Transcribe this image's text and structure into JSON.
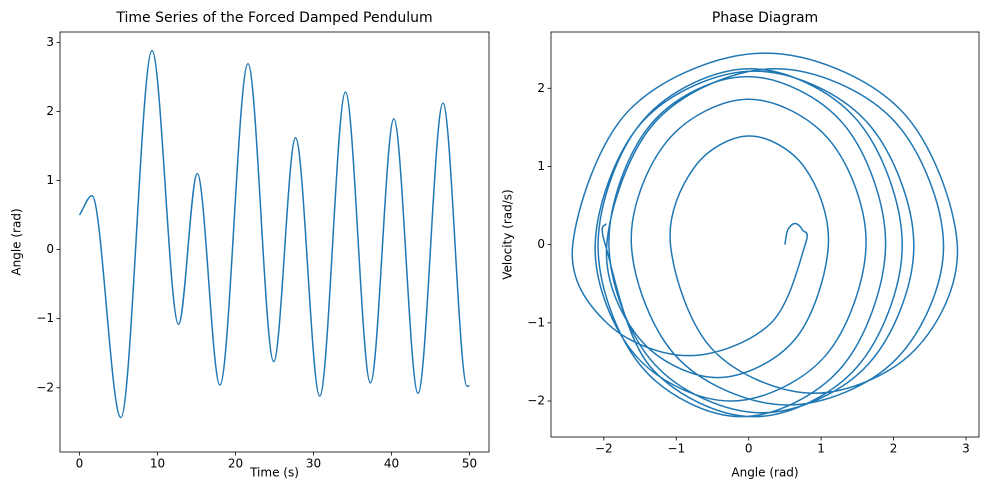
{
  "chart_data": [
    {
      "type": "line",
      "title": "Time Series of the Forced Damped Pendulum",
      "x_label": "Time (s)",
      "y_label": "Angle (rad)",
      "color": "#1f77b4",
      "x": [
        0,
        1.6,
        5.3,
        9.3,
        12.7,
        15.1,
        18.0,
        21.6,
        24.9,
        27.7,
        30.8,
        34.1,
        37.3,
        40.3,
        43.4,
        46.6,
        49.7,
        50
      ],
      "values": [
        0.5,
        0.78,
        -2.43,
        2.88,
        -1.08,
        1.1,
        -1.96,
        2.69,
        -1.62,
        1.62,
        -2.12,
        2.28,
        -1.93,
        1.89,
        -2.08,
        2.12,
        -1.98,
        -1.97
      ],
      "xlim": [
        -2.5,
        52.5
      ],
      "ylim": [
        -2.93,
        3.15
      ],
      "xticks": [
        0,
        10,
        20,
        30,
        40,
        50
      ],
      "yticks": [
        {
          "value": -2,
          "label": "−2"
        },
        {
          "value": -1,
          "label": "−1"
        },
        0,
        1,
        2,
        3
      ]
    },
    {
      "type": "line",
      "title": "Phase Diagram",
      "x_label": "Angle (rad)",
      "y_label": "Velocity (rad/s)",
      "color": "#1f77b4",
      "x": [
        0.5,
        0.54,
        0.64,
        0.74,
        0.78,
        0.3,
        -0.83,
        -1.95,
        -2.43,
        -1.63,
        0.23,
        2.08,
        2.88,
        2.29,
        0.9,
        -0.49,
        -1.08,
        -0.75,
        0.01,
        0.77,
        1.1,
        0.64,
        -0.43,
        -1.5,
        -1.96,
        -1.26,
        0.37,
        1.99,
        2.69,
        2.04,
        0.54,
        -0.97,
        -1.62,
        -1.13,
        0,
        1.13,
        1.62,
        1.06,
        -0.25,
        -1.56,
        -2.12,
        -1.46,
        0.08,
        1.62,
        2.28,
        1.65,
        0.18,
        -1.3,
        -1.93,
        -1.36,
        -0.02,
        1.32,
        1.89,
        1.29,
        -0.1,
        -1.48,
        -2.08,
        -1.45,
        0.02,
        1.49,
        2.12,
        1.5,
        0.07,
        -1.36,
        -1.98,
        -1.97
      ],
      "values": [
        0,
        0.19,
        0.27,
        0.19,
        0,
        -1.01,
        -1.42,
        -1.01,
        0,
        1.74,
        2.45,
        1.74,
        0,
        -1.35,
        -1.9,
        -1.35,
        0,
        0.99,
        1.39,
        0.99,
        0,
        -1.21,
        -1.7,
        -1.21,
        0,
        1.6,
        2.25,
        1.6,
        0,
        -1.46,
        -2.05,
        -1.46,
        0,
        1.32,
        1.86,
        1.32,
        0,
        -1.42,
        -2.0,
        -1.42,
        0,
        1.58,
        2.22,
        1.58,
        0,
        -1.53,
        -2.15,
        -1.53,
        0,
        1.53,
        2.15,
        1.53,
        0,
        -1.56,
        -2.2,
        -1.56,
        0,
        1.6,
        2.25,
        1.6,
        0,
        -1.56,
        -2.2,
        -1.56,
        0,
        0.27
      ],
      "xlim": [
        -2.73,
        3.18
      ],
      "ylim": [
        -2.46,
        2.72
      ],
      "xticks": [
        {
          "value": -2,
          "label": "−2"
        },
        {
          "value": -1,
          "label": "−1"
        },
        0,
        1,
        2,
        3
      ],
      "yticks": [
        {
          "value": -2,
          "label": "−2"
        },
        {
          "value": -1,
          "label": "−1"
        },
        0,
        1,
        2
      ]
    }
  ]
}
